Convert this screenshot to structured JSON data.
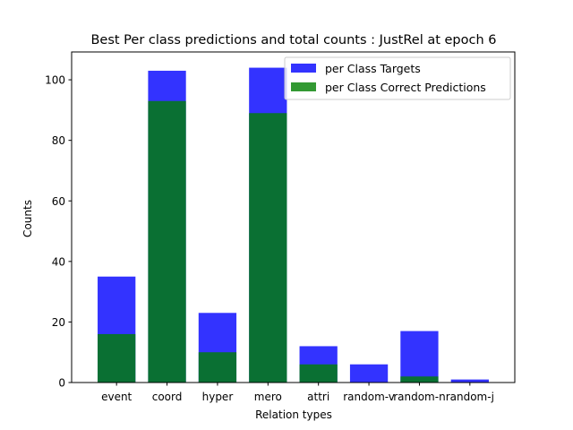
{
  "chart_data": {
    "type": "bar",
    "title": "Best Per class predictions and total counts : JustRel at epoch 6",
    "xlabel": "Relation types",
    "ylabel": "Counts",
    "categories": [
      "event",
      "coord",
      "hyper",
      "mero",
      "attri",
      "random-v",
      "random-n",
      "random-j"
    ],
    "series": [
      {
        "name": "per Class Targets",
        "color": "#0000ff",
        "opacity": 0.8,
        "values": [
          35,
          103,
          23,
          104,
          12,
          6,
          17,
          1
        ]
      },
      {
        "name": "per Class Correct Predictions",
        "color": "#008000",
        "opacity": 0.8,
        "values": [
          16,
          93,
          10,
          89,
          6,
          0,
          2,
          0
        ]
      }
    ],
    "ylim": [
      0,
      109.2
    ],
    "yticks": [
      0,
      20,
      40,
      60,
      80,
      100
    ],
    "legend_position": "upper right",
    "grid": false
  }
}
